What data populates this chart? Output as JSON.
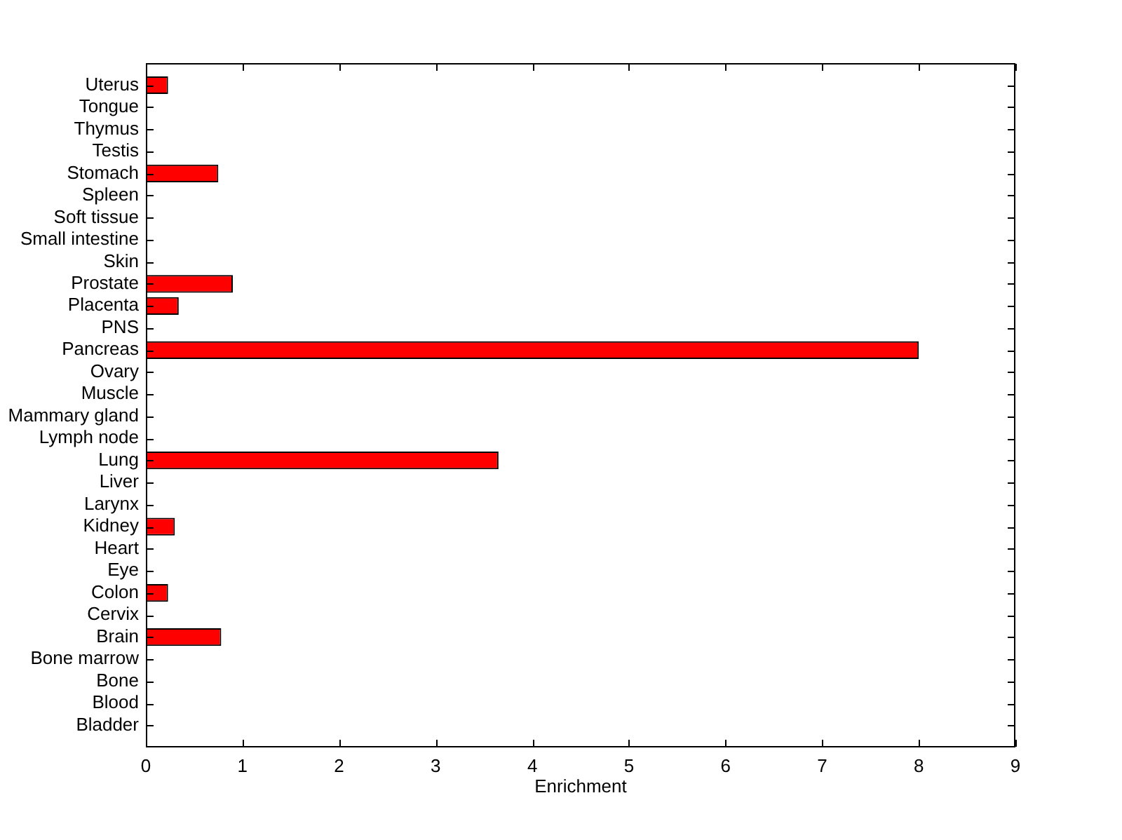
{
  "chart_data": {
    "type": "bar",
    "orientation": "horizontal",
    "xlabel": "Enrichment",
    "categories": [
      "Uterus",
      "Tongue",
      "Thymus",
      "Testis",
      "Stomach",
      "Spleen",
      "Soft tissue",
      "Small intestine",
      "Skin",
      "Prostate",
      "Placenta",
      "PNS",
      "Pancreas",
      "Ovary",
      "Muscle",
      "Mammary gland",
      "Lymph node",
      "Lung",
      "Liver",
      "Larynx",
      "Kidney",
      "Heart",
      "Eye",
      "Colon",
      "Cervix",
      "Brain",
      "Bone marrow",
      "Bone",
      "Blood",
      "Bladder"
    ],
    "values": [
      0.23,
      0,
      0,
      0,
      0.75,
      0,
      0,
      0,
      0,
      0.9,
      0.34,
      0,
      8.0,
      0,
      0,
      0,
      0,
      3.65,
      0,
      0,
      0.3,
      0,
      0,
      0.23,
      0,
      0.78,
      0,
      0,
      0,
      0
    ],
    "color": "#ff0000",
    "xlim": [
      0,
      9
    ],
    "xticks": [
      0,
      1,
      2,
      3,
      4,
      5,
      6,
      7,
      8,
      9
    ]
  }
}
